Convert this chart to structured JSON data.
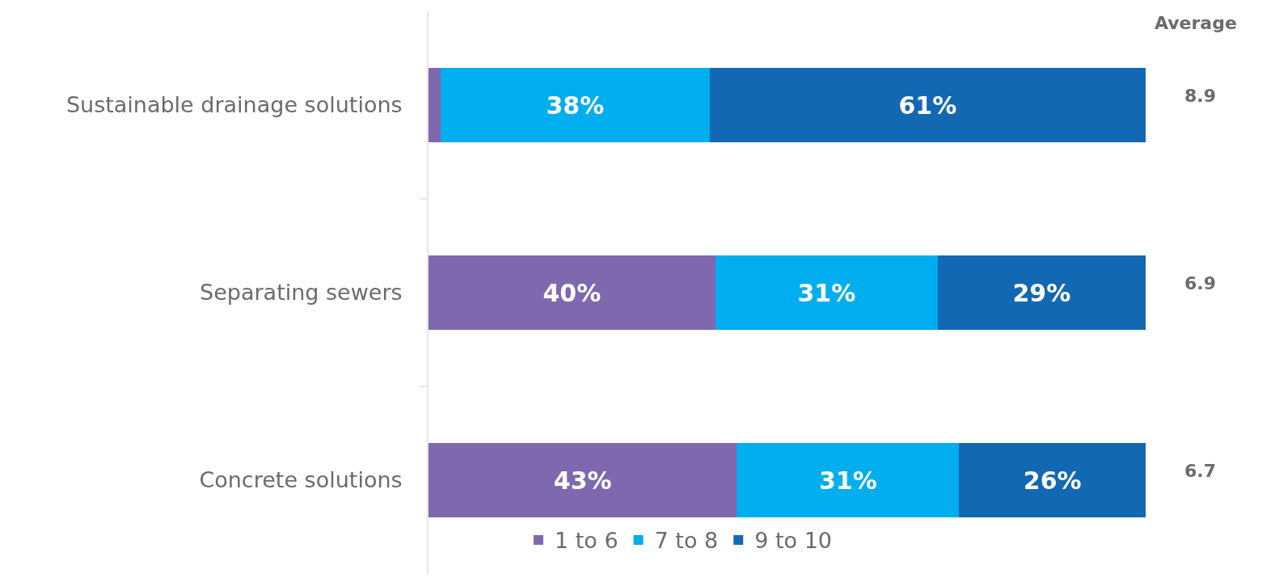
{
  "chart_data": {
    "type": "bar",
    "orientation": "horizontal",
    "stacked": true,
    "categories": [
      "Sustainable drainage solutions",
      "Separating sewers",
      "Concrete solutions"
    ],
    "series": [
      {
        "name": "1 to 6",
        "color": "#8068ae",
        "values": [
          1.7,
          40,
          43
        ],
        "value_labels": [
          null,
          "40%",
          "43%"
        ]
      },
      {
        "name": "7 to 8",
        "color": "#00adee",
        "values": [
          37.5,
          31,
          31
        ],
        "value_labels": [
          "38%",
          "31%",
          "31%"
        ]
      },
      {
        "name": "9 to 10",
        "color": "#1368b3",
        "values": [
          60.8,
          29,
          26
        ],
        "value_labels": [
          "61%",
          "29%",
          "26%"
        ]
      }
    ],
    "xlim": [
      0,
      100
    ],
    "tick_labels": "y",
    "legend": "bottom",
    "annotations": [
      "Average",
      "8.9",
      "6.9",
      "6.7"
    ]
  }
}
